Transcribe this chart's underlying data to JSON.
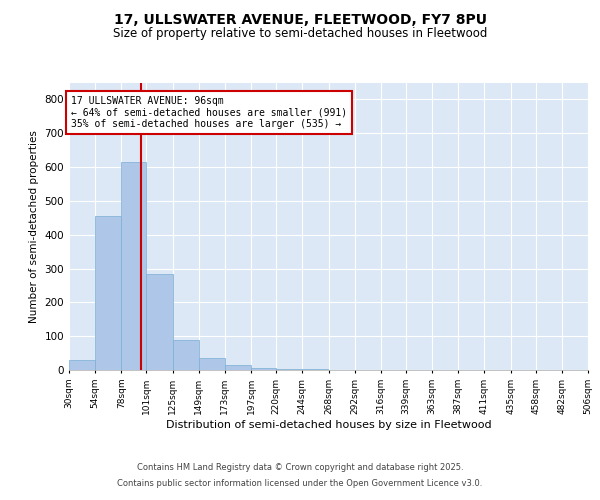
{
  "title": "17, ULLSWATER AVENUE, FLEETWOOD, FY7 8PU",
  "subtitle": "Size of property relative to semi-detached houses in Fleetwood",
  "xlabel": "Distribution of semi-detached houses by size in Fleetwood",
  "ylabel": "Number of semi-detached properties",
  "bins": [
    "30sqm",
    "54sqm",
    "78sqm",
    "101sqm",
    "125sqm",
    "149sqm",
    "173sqm",
    "197sqm",
    "220sqm",
    "244sqm",
    "268sqm",
    "292sqm",
    "316sqm",
    "339sqm",
    "363sqm",
    "387sqm",
    "411sqm",
    "435sqm",
    "458sqm",
    "482sqm",
    "506sqm"
  ],
  "bin_edges": [
    30,
    54,
    78,
    101,
    125,
    149,
    173,
    197,
    220,
    244,
    268,
    292,
    316,
    339,
    363,
    387,
    411,
    435,
    458,
    482,
    506
  ],
  "values": [
    30,
    455,
    615,
    285,
    90,
    35,
    15,
    5,
    3,
    2,
    1,
    0,
    0,
    0,
    0,
    0,
    0,
    0,
    0,
    0
  ],
  "bar_color": "#aec6e8",
  "bar_edge_color": "#7aafd4",
  "property_size": 96,
  "property_line_color": "#cc0000",
  "annotation_line1": "17 ULLSWATER AVENUE: 96sqm",
  "annotation_line2": "← 64% of semi-detached houses are smaller (991)",
  "annotation_line3": "35% of semi-detached houses are larger (535) →",
  "annotation_box_color": "#cc0000",
  "annotation_bg_color": "#ffffff",
  "ylim": [
    0,
    850
  ],
  "yticks": [
    0,
    100,
    200,
    300,
    400,
    500,
    600,
    700,
    800
  ],
  "background_color": "#dce8f5",
  "footer_line1": "Contains HM Land Registry data © Crown copyright and database right 2025.",
  "footer_line2": "Contains public sector information licensed under the Open Government Licence v3.0.",
  "title_fontsize": 10,
  "subtitle_fontsize": 8.5
}
